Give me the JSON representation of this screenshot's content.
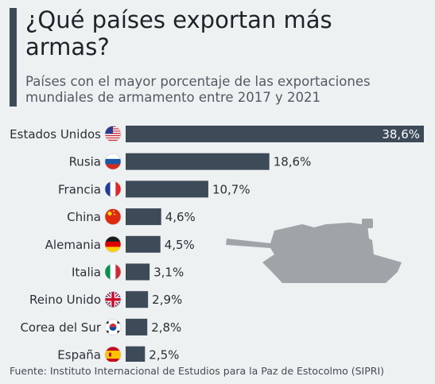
{
  "title": "¿Qué países exportan más armas?",
  "subtitle": "Países con el mayor porcentaje de las exportaciones mundiales de armamento entre 2017 y 2021",
  "source": "Fuente: Instituto Internacional de Estudios para la Paz de Estocolmo (SIPRI)",
  "colors": {
    "bar": "#3d4a58",
    "accent": "#3d4a58",
    "tank": "#a0a4a8",
    "background": "#eef1f2"
  },
  "chart_data": {
    "type": "bar",
    "orientation": "horizontal",
    "categories": [
      "Estados Unidos",
      "Rusia",
      "Francia",
      "China",
      "Alemania",
      "Italia",
      "Reino Unido",
      "Corea del Sur",
      "España"
    ],
    "values": [
      38.6,
      18.6,
      10.7,
      4.6,
      4.5,
      3.1,
      2.9,
      2.8,
      2.5
    ],
    "value_labels": [
      "38,6%",
      "18,6%",
      "10,7%",
      "4,6%",
      "4,5%",
      "3,1%",
      "2,9%",
      "2,8%",
      "2,5%"
    ],
    "flags": [
      "us-flag-icon",
      "russia-flag-icon",
      "france-flag-icon",
      "china-flag-icon",
      "germany-flag-icon",
      "italy-flag-icon",
      "uk-flag-icon",
      "south-korea-flag-icon",
      "spain-flag-icon"
    ],
    "unit": "%",
    "grid": false
  }
}
